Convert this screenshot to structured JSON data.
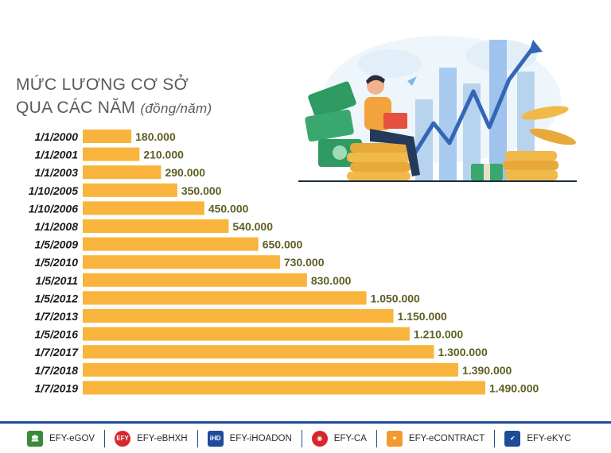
{
  "title": {
    "line1": "MỨC LƯƠNG CƠ SỞ",
    "line2": "QUA CÁC NĂM",
    "unit": "(đồng/năm)"
  },
  "chart_data": {
    "type": "bar",
    "orientation": "horizontal",
    "bar_color": "#f8b43c",
    "value_label_color": "#5f5f24",
    "categories": [
      "1/1/2000",
      "1/1/2001",
      "1/1/2003",
      "1/10/2005",
      "1/10/2006",
      "1/1/2008",
      "1/5/2009",
      "1/5/2010",
      "1/5/2011",
      "1/5/2012",
      "1/7/2013",
      "1/5/2016",
      "1/7/2017",
      "1/7/2018",
      "1/7/2019"
    ],
    "values": [
      180000,
      210000,
      290000,
      350000,
      450000,
      540000,
      650000,
      730000,
      830000,
      1050000,
      1150000,
      1210000,
      1300000,
      1390000,
      1490000
    ],
    "value_labels": [
      "180.000",
      "210.000",
      "290.000",
      "350.000",
      "450.000",
      "540.000",
      "650.000",
      "730.000",
      "830.000",
      "1.050.000",
      "1.150.000",
      "1.210.000",
      "1.300.000",
      "1.390.000",
      "1.490.000"
    ]
  },
  "footer": {
    "brands": [
      {
        "label": "EFY-eGOV",
        "icon": "bank-icon",
        "color": "#3b8a3a"
      },
      {
        "label": "EFY-eBHXH",
        "icon": "efy-shield-icon",
        "color": "#d8262d"
      },
      {
        "label": "EFY-iHOADON",
        "icon": "ihd-icon",
        "color": "#1f4c99"
      },
      {
        "label": "EFY-CA",
        "icon": "ca-icon",
        "color": "#d8262d"
      },
      {
        "label": "EFY-eCONTRACT",
        "icon": "heart-icon",
        "color": "#f29a2e"
      },
      {
        "label": "EFY-eKYC",
        "icon": "face-check-icon",
        "color": "#1f4c99"
      }
    ]
  }
}
